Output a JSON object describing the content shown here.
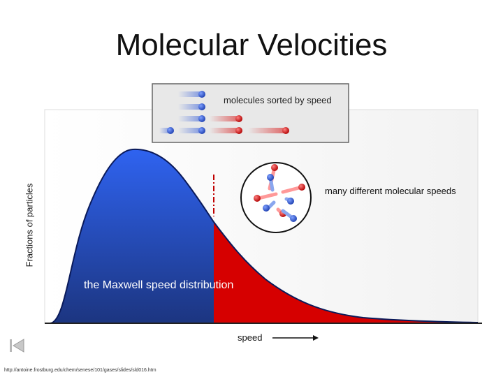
{
  "slide": {
    "title": "Molecular Velocities",
    "source_url": "http://antoine.frostburg.edu/chem/senese/101/gases/slides/sld016.htm"
  },
  "diagram": {
    "y_axis_label": "Fractions of particles",
    "x_axis_label": "speed",
    "curve_label": "the Maxwell speed distribution",
    "sorted_box_label": "molecules sorted by speed",
    "container_label": "many different molecular speeds"
  },
  "colors": {
    "slow": "#2b56d8",
    "fast": "#d60000",
    "box_fill": "#e8e8e8"
  },
  "icons": {
    "nav_back": "skip-back-icon",
    "speed_arrow": "arrow-right-icon"
  }
}
